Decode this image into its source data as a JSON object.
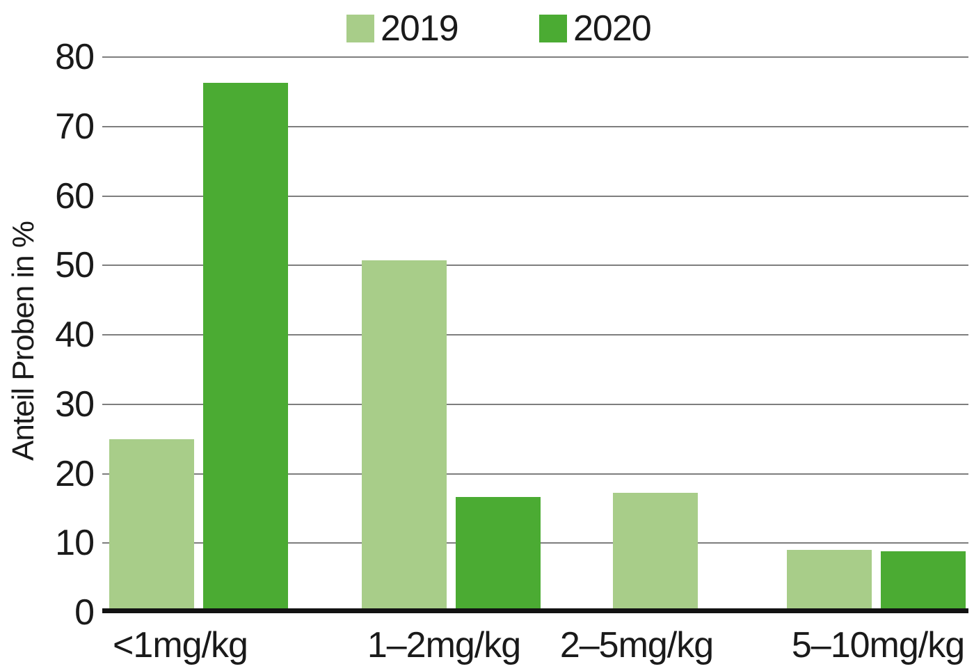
{
  "chart_data": {
    "type": "bar",
    "title": "",
    "categories": [
      "<1mg/kg",
      "1–2mg/kg",
      "2–5mg/kg",
      "5–10mg/kg"
    ],
    "series": [
      {
        "name": "2019",
        "color": "#a8cd89",
        "values": [
          24.7,
          50.4,
          16.9,
          8.7
        ]
      },
      {
        "name": "2020",
        "color": "#4bab33",
        "values": [
          76,
          16.3,
          0,
          8.5
        ]
      }
    ],
    "xlabel": "",
    "ylabel": "Anteil Proben in %",
    "ylim": [
      0,
      80
    ],
    "yticks": [
      0,
      10,
      20,
      30,
      40,
      50,
      60,
      70,
      80
    ],
    "grid": true,
    "legend_position": "top-center",
    "grid_color": "#7e7e7e",
    "axis_color": "#121212",
    "text_color": "#1a1a1a",
    "background_color": "#ffffff"
  }
}
